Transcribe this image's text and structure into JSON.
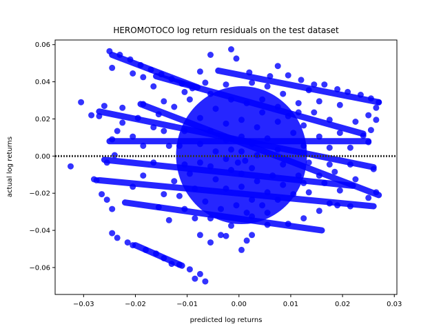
{
  "chart_data": {
    "type": "scatter",
    "title": "HEROMOTOCO log return residuals on the test dataset",
    "xlabel": "predicted log returns",
    "ylabel": "actual log returns",
    "xlim": [
      -0.0355,
      0.0305
    ],
    "ylim": [
      -0.0745,
      0.0625
    ],
    "xticks": [
      -0.03,
      -0.02,
      -0.01,
      0.0,
      0.01,
      0.02,
      0.03
    ],
    "xtick_labels": [
      "−0.03",
      "−0.02",
      "−0.01",
      "0.00",
      "0.01",
      "0.02",
      "0.03"
    ],
    "yticks": [
      -0.06,
      -0.04,
      -0.02,
      0.0,
      0.02,
      0.04,
      0.06
    ],
    "ytick_labels": [
      "−0.06",
      "−0.04",
      "−0.02",
      "0.00",
      "0.02",
      "0.04",
      "0.06"
    ],
    "grid": false,
    "legend": "none",
    "point_color": "#0000ff",
    "reference_line": {
      "y": 0.0,
      "style": "dotted",
      "color": "#333333"
    },
    "series": [
      {
        "values": [
          [
            -0.0325,
            -0.0055
          ],
          [
            -0.0305,
            0.029
          ],
          [
            -0.0285,
            0.022
          ],
          [
            -0.027,
            0.0215
          ],
          [
            -0.028,
            -0.0125
          ],
          [
            -0.0275,
            -0.013
          ],
          [
            -0.026,
            0.027
          ],
          [
            -0.025,
            0.0565
          ],
          [
            -0.0245,
            0.0475
          ],
          [
            -0.023,
            0.0545
          ],
          [
            -0.021,
            0.052
          ],
          [
            -0.019,
            0.049
          ],
          [
            -0.017,
            0.0465
          ],
          [
            -0.015,
            0.044
          ],
          [
            -0.013,
            0.0415
          ],
          [
            -0.011,
            0.039
          ],
          [
            -0.009,
            0.0365
          ],
          [
            -0.0075,
            0.0455
          ],
          [
            -0.0055,
            0.0545
          ],
          [
            -0.0015,
            0.0575
          ],
          [
            -0.0005,
            0.0525
          ],
          [
            0.002,
            0.045
          ],
          [
            0.006,
            0.043
          ],
          [
            0.0075,
            0.0485
          ],
          [
            0.0095,
            0.0435
          ],
          [
            0.012,
            0.041
          ],
          [
            0.0145,
            0.0385
          ],
          [
            0.0165,
            0.0385
          ],
          [
            0.019,
            0.036
          ],
          [
            0.021,
            0.0345
          ],
          [
            0.0235,
            0.033
          ],
          [
            0.0255,
            0.031
          ],
          [
            0.027,
            0.029
          ],
          [
            0.0265,
            0.026
          ],
          [
            0.025,
            0.022
          ],
          [
            0.0265,
            0.0195
          ],
          [
            0.0255,
            0.014
          ],
          [
            0.024,
            0.011
          ],
          [
            0.025,
            0.0075
          ],
          [
            0.026,
            -0.007
          ],
          [
            0.0265,
            -0.0195
          ],
          [
            0.025,
            -0.0225
          ],
          [
            0.0215,
            -0.027
          ],
          [
            0.019,
            -0.0265
          ],
          [
            0.0175,
            -0.0255
          ],
          [
            0.0155,
            -0.0295
          ],
          [
            0.0125,
            -0.0335
          ],
          [
            0.0095,
            -0.0365
          ],
          [
            0.0055,
            -0.037
          ],
          [
            0.0025,
            -0.0425
          ],
          [
            0.0015,
            -0.0455
          ],
          [
            0.0005,
            -0.0505
          ],
          [
            -0.0025,
            -0.043
          ],
          [
            -0.0035,
            -0.0425
          ],
          [
            -0.0055,
            -0.0465
          ],
          [
            -0.0065,
            -0.0675
          ],
          [
            -0.0085,
            -0.066
          ],
          [
            -0.0075,
            -0.0635
          ],
          [
            -0.0095,
            -0.061
          ],
          [
            -0.0115,
            -0.0585
          ],
          [
            -0.013,
            -0.058
          ],
          [
            -0.0145,
            -0.055
          ],
          [
            -0.016,
            -0.0525
          ],
          [
            -0.018,
            -0.0505
          ],
          [
            -0.0205,
            -0.048
          ],
          [
            -0.0215,
            -0.0465
          ],
          [
            -0.0235,
            -0.044
          ],
          [
            -0.0245,
            -0.0415
          ],
          [
            -0.0245,
            -0.0285
          ],
          [
            -0.0255,
            -0.0235
          ],
          [
            -0.0265,
            -0.0205
          ],
          [
            -0.0255,
            -0.0035
          ],
          [
            -0.024,
            0.0005
          ],
          [
            -0.0235,
            0.0135
          ],
          [
            -0.0245,
            0.009
          ],
          [
            -0.0225,
            0.018
          ],
          [
            -0.0225,
            0.026
          ],
          [
            -0.0185,
            0.028
          ],
          [
            -0.0165,
            0.0375
          ],
          [
            -0.0165,
            0.0155
          ],
          [
            -0.0145,
            0.0135
          ],
          [
            -0.0165,
            -0.0035
          ],
          [
            -0.0185,
            -0.0105
          ],
          [
            -0.0205,
            -0.0165
          ],
          [
            -0.0155,
            -0.0275
          ],
          [
            -0.0135,
            -0.0345
          ],
          [
            -0.0105,
            -0.0285
          ],
          [
            -0.0085,
            -0.0335
          ],
          [
            -0.0075,
            -0.0425
          ],
          [
            -0.0015,
            -0.0375
          ],
          [
            0.0025,
            -0.0325
          ],
          [
            0.0055,
            -0.0305
          ],
          [
            0.0075,
            -0.0235
          ],
          [
            0.0105,
            -0.0205
          ],
          [
            0.0135,
            -0.0195
          ],
          [
            0.0165,
            -0.0145
          ],
          [
            0.0185,
            -0.0085
          ],
          [
            0.0215,
            -0.0045
          ],
          [
            0.0215,
            0.0045
          ],
          [
            0.0195,
            0.0125
          ],
          [
            0.0175,
            0.0195
          ],
          [
            0.0145,
            0.0235
          ],
          [
            0.0115,
            0.0285
          ],
          [
            0.0085,
            0.0335
          ],
          [
            0.0055,
            0.0375
          ],
          [
            0.0025,
            0.0395
          ],
          [
            -0.0025,
            0.0385
          ],
          [
            -0.0055,
            0.0335
          ],
          [
            -0.0095,
            0.0305
          ],
          [
            -0.0125,
            0.0265
          ],
          [
            -0.0155,
            0.0225
          ],
          [
            -0.0135,
            0.0055
          ],
          [
            -0.0105,
            -0.0045
          ],
          [
            -0.0105,
            0.0135
          ],
          [
            -0.0075,
            0.0205
          ],
          [
            -0.0045,
            0.0255
          ],
          [
            -0.0015,
            0.0305
          ],
          [
            0.0015,
            0.0285
          ],
          [
            0.0045,
            0.0235
          ],
          [
            0.0075,
            0.0185
          ],
          [
            0.0105,
            0.0125
          ],
          [
            0.0125,
            0.0055
          ],
          [
            0.0135,
            -0.0035
          ],
          [
            0.0115,
            -0.0105
          ],
          [
            0.0085,
            -0.0155
          ],
          [
            0.0055,
            -0.0195
          ],
          [
            0.0025,
            -0.0235
          ],
          [
            -0.0005,
            -0.0265
          ],
          [
            -0.0035,
            -0.0285
          ],
          [
            -0.0065,
            -0.0245
          ],
          [
            -0.0085,
            -0.0175
          ],
          [
            -0.0095,
            -0.0095
          ],
          [
            -0.0075,
            -0.0035
          ],
          [
            -0.0075,
            0.0065
          ],
          [
            -0.0055,
            0.0135
          ],
          [
            -0.0025,
            0.0175
          ],
          [
            0.0005,
            0.0195
          ],
          [
            0.0035,
            0.0155
          ],
          [
            0.0055,
            0.0095
          ],
          [
            0.0075,
            0.0035
          ],
          [
            0.0085,
            -0.0045
          ],
          [
            0.0065,
            -0.0105
          ],
          [
            0.0035,
            -0.0135
          ],
          [
            0.0005,
            -0.0165
          ],
          [
            -0.0025,
            -0.0175
          ],
          [
            -0.0045,
            -0.0125
          ],
          [
            -0.0055,
            -0.0055
          ],
          [
            -0.0045,
            0.0025
          ],
          [
            -0.0025,
            0.0085
          ],
          [
            0.0005,
            0.0105
          ],
          [
            0.0025,
            0.0065
          ],
          [
            0.0035,
            0.0005
          ],
          [
            0.0025,
            -0.0065
          ],
          [
            0.0005,
            -0.0095
          ],
          [
            -0.0015,
            -0.0075
          ],
          [
            -0.0025,
            -0.0015
          ],
          [
            -0.0015,
            0.0035
          ],
          [
            0.0005,
            0.0025
          ],
          [
            0.0012,
            -0.0025
          ],
          [
            -0.0002,
            -0.0035
          ],
          [
            0.0095,
            0.0215
          ],
          [
            0.0125,
            0.0165
          ],
          [
            0.0155,
            0.0105
          ],
          [
            0.0175,
            0.0045
          ],
          [
            0.0175,
            -0.0045
          ],
          [
            0.0155,
            -0.0105
          ],
          [
            0.0125,
            -0.0145
          ],
          [
            -0.0115,
            0.0055
          ],
          [
            -0.0125,
            -0.0135
          ],
          [
            -0.0145,
            -0.0205
          ],
          [
            -0.0185,
            0.0055
          ],
          [
            -0.0205,
            0.0105
          ],
          [
            -0.0195,
            0.0205
          ],
          [
            0.0045,
            0.0305
          ],
          [
            0.0075,
            0.0265
          ],
          [
            0.0115,
            0.0235
          ],
          [
            0.0195,
            0.0275
          ],
          [
            0.0225,
            0.0185
          ],
          [
            0.0225,
            -0.0125
          ],
          [
            0.0195,
            -0.0185
          ],
          [
            0.0045,
            -0.0265
          ],
          [
            0.0015,
            -0.0305
          ],
          [
            -0.0055,
            -0.0335
          ],
          [
            -0.0115,
            -0.0215
          ],
          [
            -0.0145,
            0.0295
          ],
          [
            -0.0105,
            0.0345
          ],
          [
            -0.0065,
            0.0395
          ],
          [
            0.0135,
            0.0355
          ],
          [
            0.0155,
            0.0295
          ],
          [
            -0.0185,
            0.0425
          ],
          [
            -0.0205,
            0.0445
          ]
        ]
      }
    ]
  }
}
